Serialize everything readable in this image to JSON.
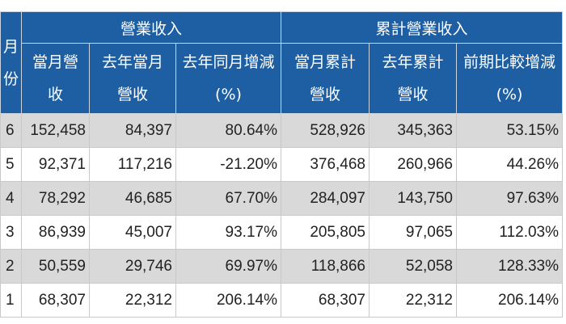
{
  "header": {
    "month_label_line1": "月",
    "month_label_line2": "份",
    "group_revenue": "營業收入",
    "group_cumulative": "累計營業收入",
    "columns": [
      {
        "line1": "當月營",
        "line2": "收"
      },
      {
        "line1": "去年當月",
        "line2": "營收"
      },
      {
        "line1": "去年同月增減",
        "line2": "(%)"
      },
      {
        "line1": "當月累計",
        "line2": "營收"
      },
      {
        "line1": "去年累計",
        "line2": "營收"
      },
      {
        "line1": "前期比較增減",
        "line2": "(%)"
      }
    ]
  },
  "rows": [
    {
      "month": "6",
      "cells": [
        "152,458",
        "84,397",
        "80.64%",
        "528,926",
        "345,363",
        "53.15%"
      ]
    },
    {
      "month": "5",
      "cells": [
        "92,371",
        "117,216",
        "-21.20%",
        "376,468",
        "260,966",
        "44.26%"
      ]
    },
    {
      "month": "4",
      "cells": [
        "78,292",
        "46,685",
        "67.70%",
        "284,097",
        "143,750",
        "97.63%"
      ]
    },
    {
      "month": "3",
      "cells": [
        "86,939",
        "45,007",
        "93.17%",
        "205,805",
        "97,065",
        "112.03%"
      ]
    },
    {
      "month": "2",
      "cells": [
        "50,559",
        "29,746",
        "69.97%",
        "118,866",
        "52,058",
        "128.33%"
      ]
    },
    {
      "month": "1",
      "cells": [
        "68,307",
        "22,312",
        "206.14%",
        "68,307",
        "22,312",
        "206.14%"
      ]
    }
  ]
}
